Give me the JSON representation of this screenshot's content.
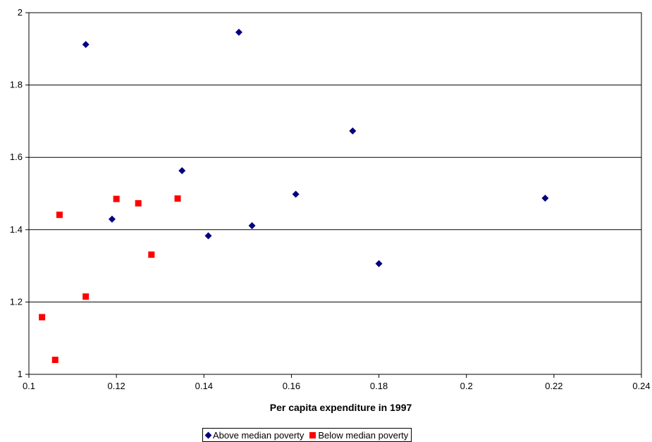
{
  "chart_data": {
    "type": "scatter",
    "title": "",
    "xlabel": "Per capita expenditure in 1997",
    "ylabel": "",
    "xlim": [
      0.1,
      0.24
    ],
    "ylim": [
      1,
      2
    ],
    "xticks": [
      0.1,
      0.12,
      0.14,
      0.16,
      0.18,
      0.2,
      0.22,
      0.24
    ],
    "yticks": [
      1,
      1.2,
      1.4,
      1.6,
      1.8,
      2
    ],
    "grid": "horizontal",
    "legend_position": "bottom",
    "series": [
      {
        "name": "Above median poverty",
        "marker": "diamond",
        "color": "#000080",
        "points": [
          {
            "x": 0.113,
            "y": 1.912
          },
          {
            "x": 0.148,
            "y": 1.946
          },
          {
            "x": 0.174,
            "y": 1.673
          },
          {
            "x": 0.135,
            "y": 1.563
          },
          {
            "x": 0.161,
            "y": 1.498
          },
          {
            "x": 0.218,
            "y": 1.487
          },
          {
            "x": 0.119,
            "y": 1.429
          },
          {
            "x": 0.151,
            "y": 1.411
          },
          {
            "x": 0.141,
            "y": 1.383
          },
          {
            "x": 0.18,
            "y": 1.306
          }
        ]
      },
      {
        "name": "Below median poverty",
        "marker": "square",
        "color": "#ff0000",
        "points": [
          {
            "x": 0.107,
            "y": 1.441
          },
          {
            "x": 0.12,
            "y": 1.485
          },
          {
            "x": 0.125,
            "y": 1.473
          },
          {
            "x": 0.134,
            "y": 1.486
          },
          {
            "x": 0.128,
            "y": 1.331
          },
          {
            "x": 0.113,
            "y": 1.215
          },
          {
            "x": 0.103,
            "y": 1.158
          },
          {
            "x": 0.106,
            "y": 1.04
          }
        ]
      }
    ]
  }
}
